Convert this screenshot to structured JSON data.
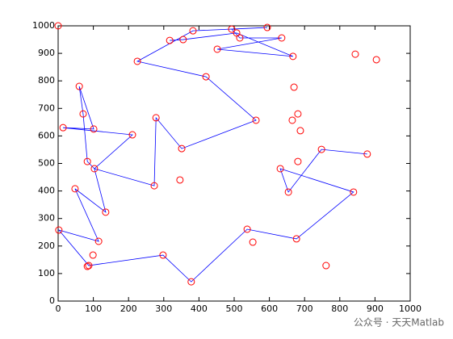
{
  "chart_data": {
    "type": "line",
    "xlim": [
      0,
      1000
    ],
    "ylim": [
      0,
      1000
    ],
    "xticks": [
      0,
      100,
      200,
      300,
      400,
      500,
      600,
      700,
      800,
      900,
      1000
    ],
    "yticks": [
      0,
      100,
      200,
      300,
      400,
      500,
      600,
      700,
      800,
      900,
      1000
    ],
    "series": [
      {
        "type": "line",
        "color": "#0000ff",
        "x": [
          878,
          748,
          654,
          631,
          839,
          677,
          537,
          378,
          298,
          87,
          2,
          115,
          48,
          135,
          103,
          273,
          278,
          351,
          562,
          420,
          225,
          383,
          594,
          493,
          516,
          635,
          452,
          667,
          507,
          355,
          317,
          null,
          103,
          211,
          14,
          101,
          60,
          71,
          83,
          103
        ],
        "y": [
          534,
          551,
          396,
          481,
          396,
          226,
          261,
          70,
          167,
          129,
          258,
          217,
          408,
          323,
          481,
          419,
          666,
          554,
          657,
          815,
          871,
          982,
          994,
          988,
          956,
          956,
          915,
          889,
          974,
          950,
          947,
          null,
          481,
          604,
          630,
          625,
          780,
          680,
          507,
          481
        ]
      },
      {
        "type": "scatter",
        "color": "#ff0000",
        "marker": "circle",
        "x": [
          0,
          594,
          493,
          383,
          507,
          516,
          635,
          317,
          355,
          452,
          667,
          844,
          904,
          225,
          420,
          670,
          60,
          71,
          681,
          278,
          562,
          665,
          14,
          101,
          688,
          211,
          351,
          748,
          878,
          83,
          681,
          103,
          631,
          346,
          273,
          654,
          839,
          48,
          135,
          2,
          115,
          537,
          553,
          677,
          99,
          87,
          83,
          298,
          761,
          378
        ],
        "y": [
          1000,
          994,
          988,
          982,
          974,
          956,
          956,
          947,
          950,
          915,
          889,
          897,
          877,
          871,
          815,
          777,
          780,
          680,
          680,
          666,
          657,
          657,
          630,
          625,
          619,
          604,
          554,
          551,
          534,
          507,
          507,
          481,
          481,
          440,
          419,
          396,
          396,
          408,
          323,
          258,
          217,
          261,
          214,
          226,
          167,
          129,
          126,
          167,
          129,
          70
        ]
      }
    ],
    "watermark": "公众号 · 天天Matlab"
  }
}
